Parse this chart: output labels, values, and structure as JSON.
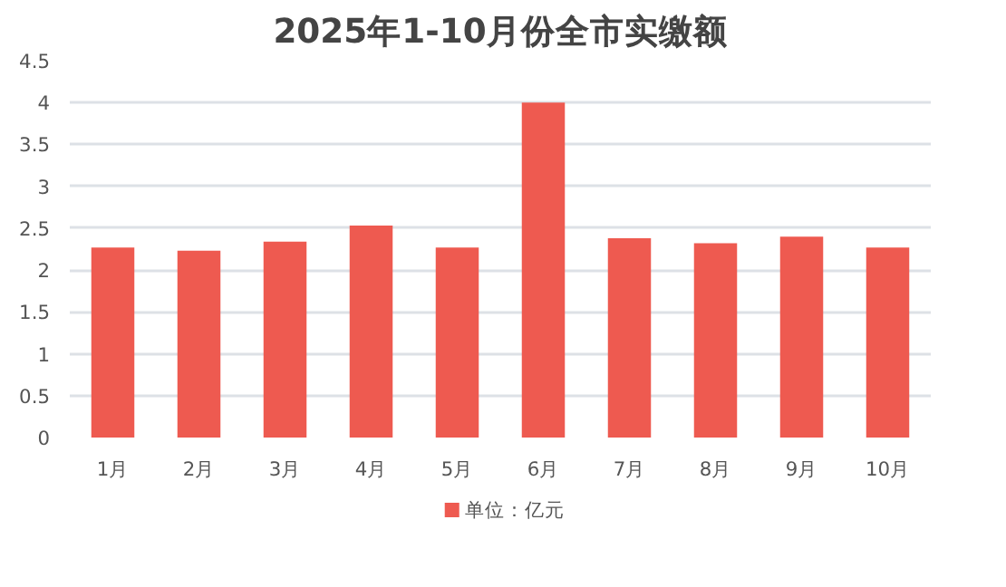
{
  "chart_data": {
    "type": "bar",
    "title": "2025年1-10月份全市实缴额",
    "categories": [
      "1月",
      "2月",
      "3月",
      "4月",
      "5月",
      "6月",
      "7月",
      "8月",
      "9月",
      "10月"
    ],
    "series": [
      {
        "name": "单位：亿元",
        "color": "#ee5a50",
        "values": [
          2.27,
          2.23,
          2.34,
          2.53,
          2.27,
          4.0,
          2.38,
          2.32,
          2.4,
          2.27
        ]
      }
    ],
    "ylim": [
      0,
      4.5
    ],
    "yticks": [
      0,
      0.5,
      1,
      1.5,
      2,
      2.5,
      3,
      3.5,
      4,
      4.5
    ],
    "grid": "y",
    "legend": "bottom"
  }
}
